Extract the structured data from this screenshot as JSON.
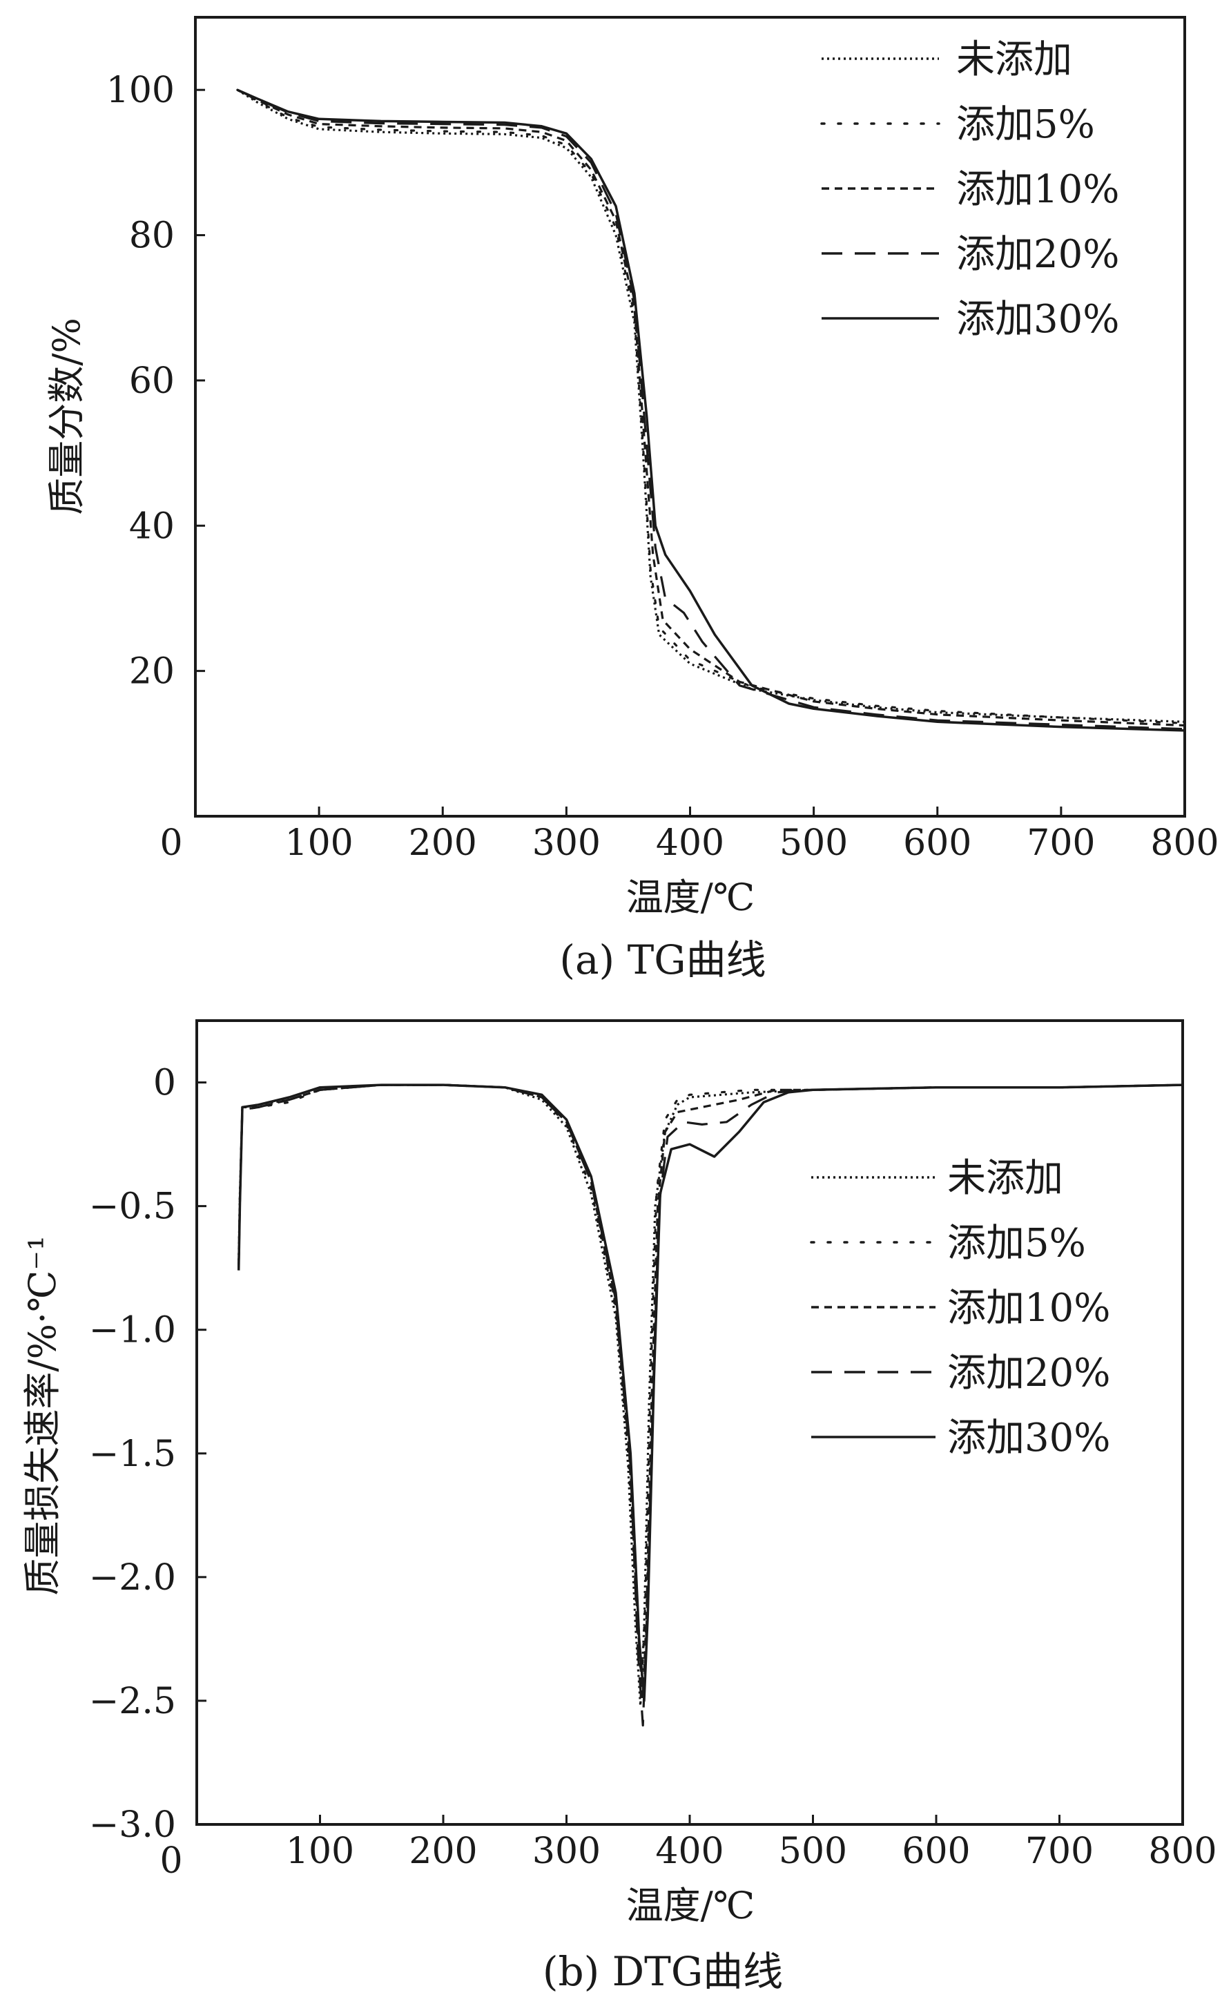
{
  "chart_data": [
    {
      "type": "line",
      "caption": "(a) TG曲线",
      "xlabel": "温度/℃",
      "ylabel": "质量分数/%",
      "xlim": [
        0,
        800
      ],
      "ylim": [
        0,
        110
      ],
      "x_ticks": [
        "100",
        "200",
        "300",
        "400",
        "500",
        "600",
        "700",
        "800"
      ],
      "y_ticks": [
        "20",
        "40",
        "60",
        "80",
        "100"
      ],
      "origin_label": "0",
      "grid": false,
      "legend_position": "top-right",
      "series": [
        {
          "name": "未添加",
          "style": "densely-dotted",
          "points": [
            [
              34,
              100
            ],
            [
              50,
              98.3
            ],
            [
              75,
              96
            ],
            [
              100,
              94.6
            ],
            [
              150,
              94.2
            ],
            [
              200,
              94
            ],
            [
              250,
              93.9
            ],
            [
              280,
              93.4
            ],
            [
              300,
              92
            ],
            [
              320,
              88
            ],
            [
              340,
              80
            ],
            [
              355,
              68
            ],
            [
              362,
              50
            ],
            [
              368,
              33
            ],
            [
              375,
              25
            ],
            [
              400,
              21
            ],
            [
              450,
              17.5
            ],
            [
              500,
              16
            ],
            [
              550,
              15
            ],
            [
              600,
              14.3
            ],
            [
              700,
              13.6
            ],
            [
              800,
              13
            ]
          ]
        },
        {
          "name": "添加5%",
          "style": "dotted",
          "points": [
            [
              34,
              100
            ],
            [
              50,
              98.5
            ],
            [
              75,
              96.2
            ],
            [
              100,
              94.9
            ],
            [
              150,
              94.5
            ],
            [
              200,
              94.3
            ],
            [
              250,
              94.2
            ],
            [
              280,
              93.7
            ],
            [
              300,
              92.4
            ],
            [
              320,
              88.5
            ],
            [
              340,
              81
            ],
            [
              355,
              69
            ],
            [
              362,
              51
            ],
            [
              368,
              34
            ],
            [
              375,
              26
            ],
            [
              400,
              21.5
            ],
            [
              450,
              17.8
            ],
            [
              500,
              16.2
            ],
            [
              550,
              15.2
            ],
            [
              600,
              14.5
            ],
            [
              700,
              13.6
            ],
            [
              800,
              12.8
            ]
          ]
        },
        {
          "name": "添加10%",
          "style": "short-dash",
          "points": [
            [
              34,
              100
            ],
            [
              50,
              98.6
            ],
            [
              75,
              96.6
            ],
            [
              100,
              95.3
            ],
            [
              150,
              95
            ],
            [
              200,
              94.8
            ],
            [
              250,
              94.7
            ],
            [
              280,
              94.2
            ],
            [
              300,
              93
            ],
            [
              320,
              89
            ],
            [
              340,
              82
            ],
            [
              355,
              70
            ],
            [
              363,
              52
            ],
            [
              370,
              36
            ],
            [
              378,
              27
            ],
            [
              400,
              23
            ],
            [
              440,
              18.5
            ],
            [
              500,
              15.8
            ],
            [
              550,
              14.8
            ],
            [
              600,
              14
            ],
            [
              700,
              13.2
            ],
            [
              800,
              12.5
            ]
          ]
        },
        {
          "name": "添加20%",
          "style": "dashed",
          "points": [
            [
              34,
              100
            ],
            [
              50,
              98.7
            ],
            [
              75,
              96.9
            ],
            [
              100,
              95.7
            ],
            [
              150,
              95.4
            ],
            [
              200,
              95.3
            ],
            [
              250,
              95.2
            ],
            [
              280,
              94.8
            ],
            [
              300,
              93.6
            ],
            [
              320,
              90
            ],
            [
              340,
              83
            ],
            [
              355,
              71
            ],
            [
              364,
              53
            ],
            [
              372,
              37
            ],
            [
              380,
              30
            ],
            [
              395,
              28
            ],
            [
              410,
              24
            ],
            [
              440,
              18
            ],
            [
              500,
              15
            ],
            [
              550,
              14
            ],
            [
              600,
              13.2
            ],
            [
              700,
              12.6
            ],
            [
              800,
              12
            ]
          ]
        },
        {
          "name": "添加30%",
          "style": "solid",
          "points": [
            [
              34,
              100
            ],
            [
              50,
              98.8
            ],
            [
              75,
              97
            ],
            [
              100,
              96
            ],
            [
              150,
              95.7
            ],
            [
              200,
              95.6
            ],
            [
              250,
              95.5
            ],
            [
              280,
              95
            ],
            [
              300,
              94
            ],
            [
              320,
              90.5
            ],
            [
              340,
              84
            ],
            [
              355,
              72
            ],
            [
              365,
              55
            ],
            [
              372,
              40
            ],
            [
              380,
              36
            ],
            [
              400,
              31
            ],
            [
              420,
              25
            ],
            [
              450,
              18
            ],
            [
              480,
              15.5
            ],
            [
              500,
              14.8
            ],
            [
              550,
              13.8
            ],
            [
              600,
              13
            ],
            [
              700,
              12.3
            ],
            [
              800,
              11.8
            ]
          ]
        }
      ]
    },
    {
      "type": "line",
      "caption": "(b) DTG曲线",
      "xlabel": "温度/℃",
      "ylabel": "质量损失速率/%·℃⁻¹",
      "xlim": [
        0,
        800
      ],
      "ylim": [
        -3.0,
        0.25
      ],
      "x_ticks": [
        "100",
        "200",
        "300",
        "400",
        "500",
        "600",
        "700",
        "800"
      ],
      "y_ticks": [
        "0",
        "−0.5",
        "−1.0",
        "−1.5",
        "−2.0",
        "−2.5",
        "−3.0"
      ],
      "origin_label": "0",
      "grid": false,
      "legend_position": "center-right",
      "series": [
        {
          "name": "未添加",
          "style": "densely-dotted",
          "points": [
            [
              34,
              -0.72
            ],
            [
              35,
              -0.45
            ],
            [
              37,
              -0.1
            ],
            [
              50,
              -0.09
            ],
            [
              75,
              -0.07
            ],
            [
              100,
              -0.03
            ],
            [
              150,
              -0.01
            ],
            [
              200,
              -0.01
            ],
            [
              250,
              -0.02
            ],
            [
              280,
              -0.07
            ],
            [
              300,
              -0.18
            ],
            [
              320,
              -0.45
            ],
            [
              340,
              -0.95
            ],
            [
              350,
              -1.55
            ],
            [
              356,
              -2.2
            ],
            [
              360,
              -2.52
            ],
            [
              363,
              -2.2
            ],
            [
              367,
              -1.3
            ],
            [
              372,
              -0.5
            ],
            [
              380,
              -0.2
            ],
            [
              390,
              -0.09
            ],
            [
              400,
              -0.06
            ],
            [
              450,
              -0.04
            ],
            [
              500,
              -0.03
            ],
            [
              600,
              -0.02
            ],
            [
              700,
              -0.02
            ],
            [
              800,
              -0.01
            ]
          ]
        },
        {
          "name": "添加5%",
          "style": "dotted",
          "points": [
            [
              34,
              -0.74
            ],
            [
              35,
              -0.46
            ],
            [
              37,
              -0.11
            ],
            [
              50,
              -0.1
            ],
            [
              75,
              -0.08
            ],
            [
              100,
              -0.03
            ],
            [
              150,
              -0.01
            ],
            [
              200,
              -0.01
            ],
            [
              250,
              -0.02
            ],
            [
              280,
              -0.06
            ],
            [
              300,
              -0.17
            ],
            [
              320,
              -0.43
            ],
            [
              340,
              -0.92
            ],
            [
              350,
              -1.5
            ],
            [
              357,
              -2.15
            ],
            [
              361,
              -2.45
            ],
            [
              364,
              -2.1
            ],
            [
              368,
              -1.25
            ],
            [
              373,
              -0.45
            ],
            [
              380,
              -0.15
            ],
            [
              390,
              -0.07
            ],
            [
              400,
              -0.05
            ],
            [
              450,
              -0.03
            ],
            [
              500,
              -0.03
            ],
            [
              600,
              -0.02
            ],
            [
              700,
              -0.02
            ],
            [
              800,
              -0.01
            ]
          ]
        },
        {
          "name": "添加10%",
          "style": "short-dash",
          "points": [
            [
              34,
              -0.75
            ],
            [
              35,
              -0.47
            ],
            [
              37,
              -0.1
            ],
            [
              50,
              -0.1
            ],
            [
              75,
              -0.07
            ],
            [
              100,
              -0.03
            ],
            [
              150,
              -0.01
            ],
            [
              200,
              -0.01
            ],
            [
              250,
              -0.02
            ],
            [
              280,
              -0.06
            ],
            [
              300,
              -0.16
            ],
            [
              320,
              -0.4
            ],
            [
              340,
              -0.9
            ],
            [
              351,
              -1.5
            ],
            [
              358,
              -2.2
            ],
            [
              362,
              -2.5
            ],
            [
              365,
              -2.15
            ],
            [
              369,
              -1.3
            ],
            [
              374,
              -0.5
            ],
            [
              380,
              -0.2
            ],
            [
              390,
              -0.12
            ],
            [
              410,
              -0.1
            ],
            [
              440,
              -0.07
            ],
            [
              470,
              -0.03
            ],
            [
              500,
              -0.03
            ],
            [
              600,
              -0.02
            ],
            [
              700,
              -0.02
            ],
            [
              800,
              -0.01
            ]
          ]
        },
        {
          "name": "添加20%",
          "style": "dashed",
          "points": [
            [
              34,
              -0.75
            ],
            [
              35,
              -0.48
            ],
            [
              37,
              -0.11
            ],
            [
              50,
              -0.1
            ],
            [
              75,
              -0.07
            ],
            [
              100,
              -0.03
            ],
            [
              150,
              -0.01
            ],
            [
              200,
              -0.01
            ],
            [
              250,
              -0.02
            ],
            [
              280,
              -0.06
            ],
            [
              300,
              -0.16
            ],
            [
              320,
              -0.4
            ],
            [
              340,
              -0.88
            ],
            [
              352,
              -1.55
            ],
            [
              358,
              -2.3
            ],
            [
              362,
              -2.6
            ],
            [
              365,
              -2.2
            ],
            [
              370,
              -1.3
            ],
            [
              375,
              -0.5
            ],
            [
              382,
              -0.22
            ],
            [
              395,
              -0.16
            ],
            [
              410,
              -0.17
            ],
            [
              430,
              -0.16
            ],
            [
              450,
              -0.09
            ],
            [
              470,
              -0.04
            ],
            [
              500,
              -0.03
            ],
            [
              600,
              -0.02
            ],
            [
              700,
              -0.02
            ],
            [
              800,
              -0.01
            ]
          ]
        },
        {
          "name": "添加30%",
          "style": "solid",
          "points": [
            [
              34,
              -0.76
            ],
            [
              35,
              -0.49
            ],
            [
              37,
              -0.1
            ],
            [
              50,
              -0.09
            ],
            [
              75,
              -0.06
            ],
            [
              100,
              -0.02
            ],
            [
              150,
              -0.01
            ],
            [
              200,
              -0.01
            ],
            [
              250,
              -0.02
            ],
            [
              280,
              -0.05
            ],
            [
              300,
              -0.15
            ],
            [
              320,
              -0.38
            ],
            [
              340,
              -0.85
            ],
            [
              352,
              -1.5
            ],
            [
              359,
              -2.25
            ],
            [
              363,
              -2.5
            ],
            [
              366,
              -2.15
            ],
            [
              371,
              -1.2
            ],
            [
              376,
              -0.45
            ],
            [
              385,
              -0.27
            ],
            [
              400,
              -0.25
            ],
            [
              420,
              -0.3
            ],
            [
              440,
              -0.2
            ],
            [
              460,
              -0.08
            ],
            [
              480,
              -0.04
            ],
            [
              500,
              -0.03
            ],
            [
              600,
              -0.02
            ],
            [
              700,
              -0.02
            ],
            [
              800,
              -0.01
            ]
          ]
        }
      ]
    }
  ]
}
